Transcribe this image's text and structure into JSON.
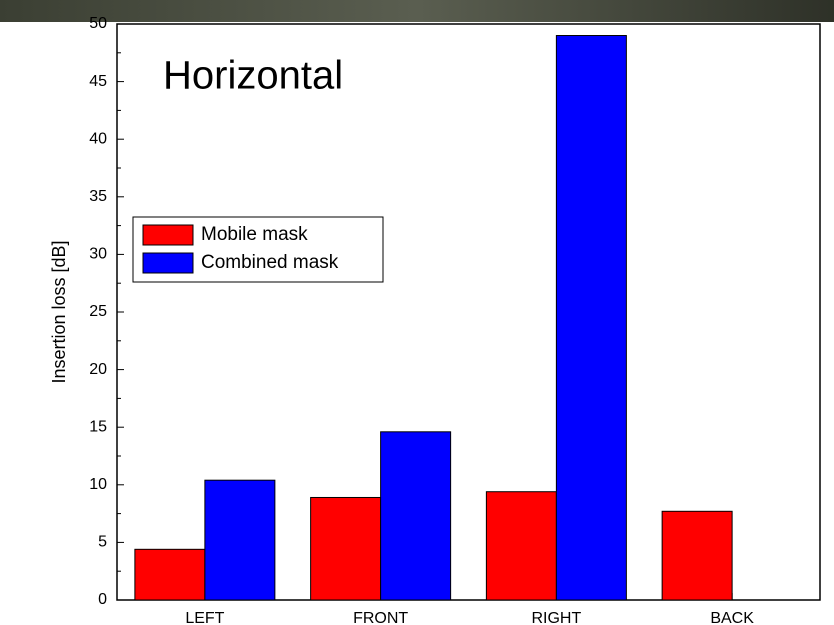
{
  "chart_data": {
    "type": "bar",
    "annotation": "Horizontal",
    "y_label": "Insertion loss [dB]",
    "categories": [
      "LEFT",
      "FRONT",
      "RIGHT",
      "BACK"
    ],
    "series": [
      {
        "name": "Mobile mask",
        "color": "#ff0000",
        "values": [
          4.4,
          8.9,
          9.4,
          7.7
        ]
      },
      {
        "name": "Combined mask",
        "color": "#0000ff",
        "values": [
          10.4,
          14.6,
          49,
          null
        ]
      }
    ],
    "ylim": [
      0,
      50
    ],
    "yticks": [
      0,
      5,
      10,
      15,
      20,
      25,
      30,
      35,
      40,
      45,
      50
    ],
    "legend": "upper left"
  }
}
